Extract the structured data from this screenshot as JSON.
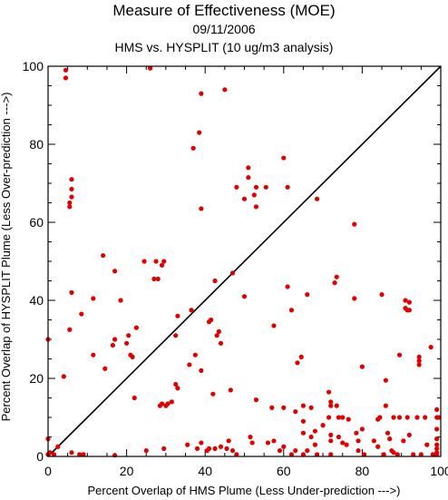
{
  "chart_data": {
    "type": "scatter",
    "title": "Measure of Effectiveness (MOE)",
    "subtitle": "09/11/2006",
    "subtitle2": "HMS vs. HYSPLIT  (10 ug/m3 analysis)",
    "xlabel": "Percent Overlap of HMS Plume (Less Under-prediction --->)",
    "ylabel": "Percent Overlap of HYSPLIT Plume (Less Over-prediction --->)",
    "xlim": [
      0,
      100
    ],
    "ylim": [
      0,
      100
    ],
    "xticks": [
      "0",
      "20",
      "40",
      "60",
      "80",
      "100"
    ],
    "yticks": [
      "0",
      "20",
      "40",
      "60",
      "80",
      "100"
    ],
    "grid": false,
    "reference_line": "1:1 diagonal",
    "point_color": "#e00000",
    "points": [
      [
        0,
        30
      ],
      [
        0,
        4.5
      ],
      [
        0,
        0.5
      ],
      [
        0,
        0.5
      ],
      [
        0.5,
        1
      ],
      [
        1.5,
        0.5
      ],
      [
        2.5,
        2.5
      ],
      [
        4,
        20.5
      ],
      [
        4.5,
        99
      ],
      [
        4.5,
        97
      ],
      [
        5.5,
        32.5
      ],
      [
        5.5,
        64
      ],
      [
        5.5,
        65
      ],
      [
        6,
        66.5
      ],
      [
        6,
        68.5
      ],
      [
        6,
        71
      ],
      [
        6,
        42
      ],
      [
        6,
        1
      ],
      [
        8,
        0.5
      ],
      [
        8.5,
        36.5
      ],
      [
        9,
        0.5
      ],
      [
        11.5,
        40.5
      ],
      [
        11.5,
        26
      ],
      [
        14,
        51.5
      ],
      [
        14.5,
        22.5
      ],
      [
        16.5,
        28.5
      ],
      [
        17,
        47.5
      ],
      [
        17,
        30
      ],
      [
        17,
        0.3
      ],
      [
        18.5,
        40
      ],
      [
        20,
        29
      ],
      [
        20.5,
        31
      ],
      [
        21,
        26
      ],
      [
        21.5,
        25.5
      ],
      [
        22,
        15
      ],
      [
        22.5,
        33
      ],
      [
        24.5,
        50
      ],
      [
        25,
        1.5
      ],
      [
        26,
        99.5
      ],
      [
        27,
        45.5
      ],
      [
        27.5,
        50
      ],
      [
        28,
        45.5
      ],
      [
        28.5,
        13
      ],
      [
        29,
        49
      ],
      [
        29,
        13.5
      ],
      [
        29.5,
        50
      ],
      [
        29.5,
        2
      ],
      [
        30,
        13
      ],
      [
        30.5,
        13.5
      ],
      [
        31.5,
        14
      ],
      [
        32.5,
        18.5
      ],
      [
        32.5,
        31
      ],
      [
        33,
        17.5
      ],
      [
        33,
        36
      ],
      [
        35.5,
        3
      ],
      [
        36,
        23.5
      ],
      [
        36.5,
        37.5
      ],
      [
        37,
        79
      ],
      [
        37.5,
        26
      ],
      [
        38,
        2
      ],
      [
        38.5,
        83
      ],
      [
        39,
        93
      ],
      [
        39,
        63.5
      ],
      [
        39,
        22
      ],
      [
        39,
        3.5
      ],
      [
        40.5,
        1.5
      ],
      [
        41,
        2
      ],
      [
        41,
        34.5
      ],
      [
        41.5,
        35
      ],
      [
        42,
        16
      ],
      [
        42.5,
        2
      ],
      [
        42.5,
        45
      ],
      [
        43,
        31
      ],
      [
        43.5,
        32
      ],
      [
        44,
        2.5
      ],
      [
        44,
        29
      ],
      [
        45,
        94
      ],
      [
        45.5,
        2
      ],
      [
        46,
        4
      ],
      [
        46.5,
        17
      ],
      [
        47,
        1.5
      ],
      [
        47,
        47
      ],
      [
        48,
        69
      ],
      [
        48,
        0.5
      ],
      [
        50,
        41
      ],
      [
        50,
        66
      ],
      [
        51,
        71.5
      ],
      [
        51,
        74
      ],
      [
        51.5,
        5
      ],
      [
        52,
        3.5
      ],
      [
        52.5,
        67
      ],
      [
        53,
        64
      ],
      [
        53,
        14.5
      ],
      [
        53,
        69
      ],
      [
        55.5,
        69
      ],
      [
        56,
        3.5
      ],
      [
        57,
        12.5
      ],
      [
        57.5,
        33.5
      ],
      [
        57.5,
        4
      ],
      [
        59,
        1.5
      ],
      [
        60,
        76.5
      ],
      [
        60,
        12.5
      ],
      [
        60,
        2.5
      ],
      [
        61,
        69
      ],
      [
        61,
        43.5
      ],
      [
        62,
        37.5
      ],
      [
        62,
        0.5
      ],
      [
        63,
        11.5
      ],
      [
        63,
        1.5
      ],
      [
        63.5,
        24
      ],
      [
        64.5,
        25.5
      ],
      [
        65,
        13
      ],
      [
        65,
        9
      ],
      [
        65,
        6
      ],
      [
        65,
        0.5
      ],
      [
        66,
        41.5
      ],
      [
        66,
        1.5
      ],
      [
        67,
        5
      ],
      [
        67,
        12.5
      ],
      [
        68,
        6.5
      ],
      [
        68,
        3
      ],
      [
        68.5,
        0.5
      ],
      [
        68.5,
        66
      ],
      [
        70,
        8
      ],
      [
        71.5,
        16.5
      ],
      [
        71.5,
        10
      ],
      [
        72,
        14
      ],
      [
        72,
        13
      ],
      [
        72,
        5.5
      ],
      [
        72,
        4
      ],
      [
        72,
        0.5
      ],
      [
        73,
        44.5
      ],
      [
        73.5,
        13
      ],
      [
        73.5,
        46
      ],
      [
        74,
        10
      ],
      [
        74,
        5
      ],
      [
        75,
        10
      ],
      [
        75,
        3.5
      ],
      [
        76,
        3
      ],
      [
        76.5,
        9.5
      ],
      [
        78,
        40.5
      ],
      [
        78,
        59.5
      ],
      [
        78.5,
        6
      ],
      [
        79,
        4
      ],
      [
        79,
        1.5
      ],
      [
        80,
        23
      ],
      [
        80,
        7
      ],
      [
        80.5,
        0.5
      ],
      [
        83,
        4
      ],
      [
        84,
        2.5
      ],
      [
        84,
        9.5
      ],
      [
        84.5,
        10
      ],
      [
        85,
        41.5
      ],
      [
        85.5,
        0.5
      ],
      [
        86,
        19.5
      ],
      [
        86,
        13
      ],
      [
        86.5,
        6
      ],
      [
        87,
        4.5
      ],
      [
        87.5,
        1.5
      ],
      [
        88,
        1
      ],
      [
        88,
        10
      ],
      [
        89,
        0.5
      ],
      [
        89.5,
        26
      ],
      [
        89.5,
        10
      ],
      [
        90.5,
        4
      ],
      [
        91,
        40
      ],
      [
        91,
        38
      ],
      [
        91.5,
        37.5
      ],
      [
        91.5,
        10
      ],
      [
        92,
        39.5
      ],
      [
        92,
        37.5
      ],
      [
        92,
        5.5
      ],
      [
        93,
        0.5
      ],
      [
        94,
        10
      ],
      [
        94.5,
        24.5
      ],
      [
        94.5,
        25.5
      ],
      [
        94.5,
        23.5
      ],
      [
        95,
        0.5
      ],
      [
        96,
        10
      ],
      [
        96.5,
        3
      ],
      [
        97.5,
        28
      ],
      [
        98,
        0.5
      ],
      [
        99,
        12
      ],
      [
        99,
        10
      ],
      [
        99,
        7
      ],
      [
        99,
        4.5
      ],
      [
        99,
        3
      ],
      [
        99,
        2
      ],
      [
        99,
        1
      ],
      [
        99,
        0.5
      ],
      [
        99.5,
        10
      ]
    ]
  }
}
